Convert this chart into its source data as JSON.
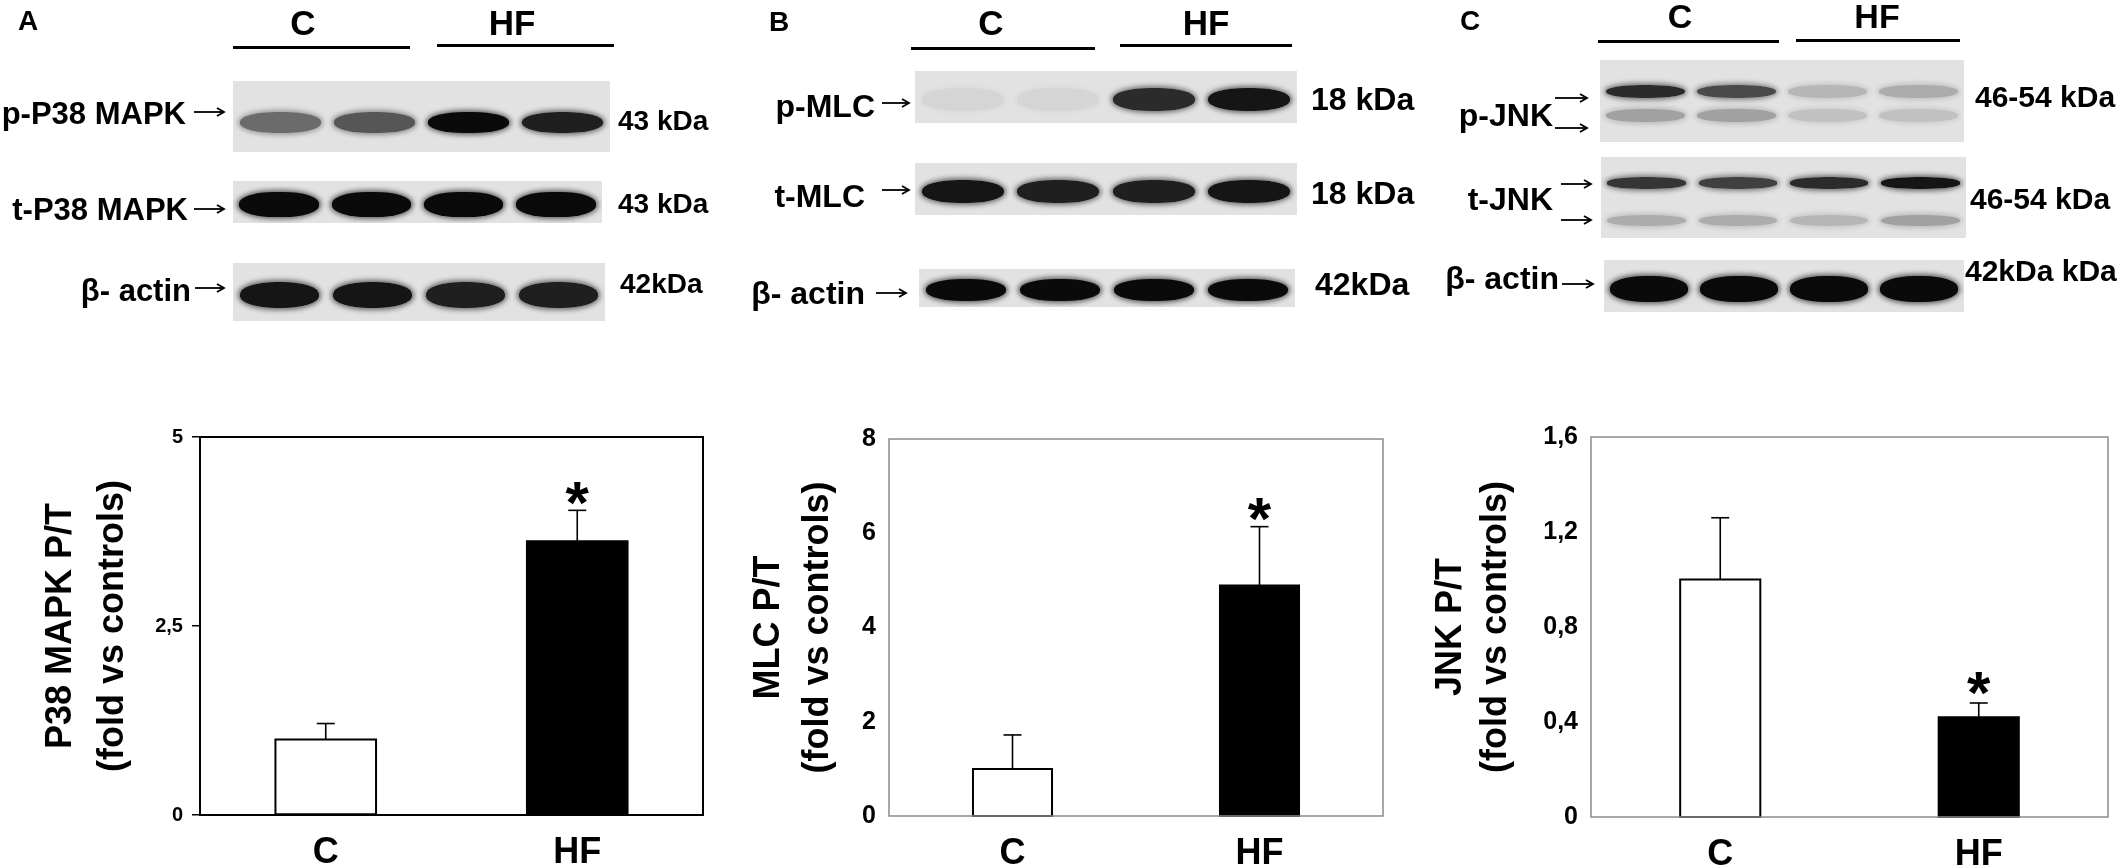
{
  "chart_data": [
    {
      "type": "bar",
      "title": "A",
      "ylabel": "P38 MAPK P/T\n(fold vs controls)",
      "categories": [
        "C",
        "HF"
      ],
      "values": [
        1.0,
        3.62
      ],
      "colors": [
        "#ffffff",
        "#000000"
      ],
      "errors": [
        [
          1.0,
          1.21
        ],
        [
          3.62,
          4.03
        ]
      ],
      "ylim": [
        0,
        5
      ],
      "yticks": [
        0,
        {
          "value": 2.5,
          "label": "2,5"
        },
        5
      ],
      "annotations": [
        "*",
        "C",
        "HF",
        "p-P38 MAPK",
        "43 kDa",
        "t-P38 MAPK",
        "43 kDa",
        "β- actin",
        "42kDa"
      ]
    },
    {
      "type": "bar",
      "title": "B",
      "ylabel": "MLC P/T\n(fold vs controls)",
      "categories": [
        "C",
        "HF"
      ],
      "values": [
        1.0,
        4.89
      ],
      "colors": [
        "#ffffff",
        "#000000"
      ],
      "errors": [
        [
          1.0,
          1.72
        ],
        [
          4.89,
          6.14
        ]
      ],
      "ylim": [
        0,
        8
      ],
      "yticks": [
        0,
        2,
        4,
        6,
        8
      ],
      "annotations": [
        "*",
        "C",
        "HF",
        "p-MLC",
        "18 kDa",
        "t-MLC",
        "18 kDa",
        "β- actin",
        "42kDa"
      ]
    },
    {
      "type": "bar",
      "title": "C",
      "ylabel": "JNK P/T\n(fold vs controls)",
      "categories": [
        "C",
        "HF"
      ],
      "values": [
        1.0,
        0.42
      ],
      "colors": [
        "#ffffff",
        "#000000"
      ],
      "errors": [
        [
          1.0,
          1.26
        ],
        [
          0.42,
          0.48
        ]
      ],
      "ylim": [
        0,
        1.6
      ],
      "yticks": [
        0,
        {
          "value": 0.4,
          "label": "0,4"
        },
        {
          "value": 0.8,
          "label": "0,8"
        },
        {
          "value": 1.2,
          "label": "1,2"
        },
        {
          "value": 1.6,
          "label": "1,6"
        }
      ],
      "annotations": [
        "*",
        "C",
        "HF",
        "p-JNK",
        "46-54 kDa",
        "t-JNK",
        "46-54 kDa",
        "β- actin",
        "42kDa kDa"
      ]
    }
  ]
}
